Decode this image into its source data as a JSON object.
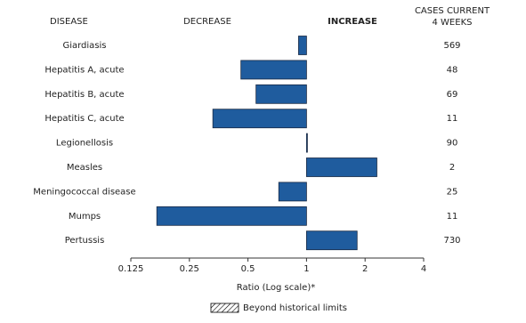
{
  "chart_data": {
    "type": "bar",
    "orientation": "horizontal",
    "column_headers": {
      "disease": "DISEASE",
      "decrease": "DECREASE",
      "increase": "INCREASE",
      "cases": [
        "CASES CURRENT",
        "4 WEEKS"
      ]
    },
    "categories": [
      "Giardiasis",
      "Hepatitis A, acute",
      "Hepatitis B, acute",
      "Hepatitis C, acute",
      "Legionellosis",
      "Measles",
      "Meningococcal disease",
      "Mumps",
      "Pertussis"
    ],
    "values": [
      0.91,
      0.46,
      0.55,
      0.33,
      1.01,
      2.3,
      0.72,
      0.17,
      1.82
    ],
    "cases": [
      569,
      48,
      69,
      11,
      90,
      2,
      25,
      11,
      730
    ],
    "color": "#1f5c9e",
    "xlim": [
      0.125,
      4
    ],
    "xticks": [
      0.125,
      0.25,
      0.5,
      1,
      2,
      4
    ],
    "log_scale": true,
    "xlabel": "Ratio (Log scale)*",
    "legend": {
      "label": "Beyond historical limits"
    }
  }
}
